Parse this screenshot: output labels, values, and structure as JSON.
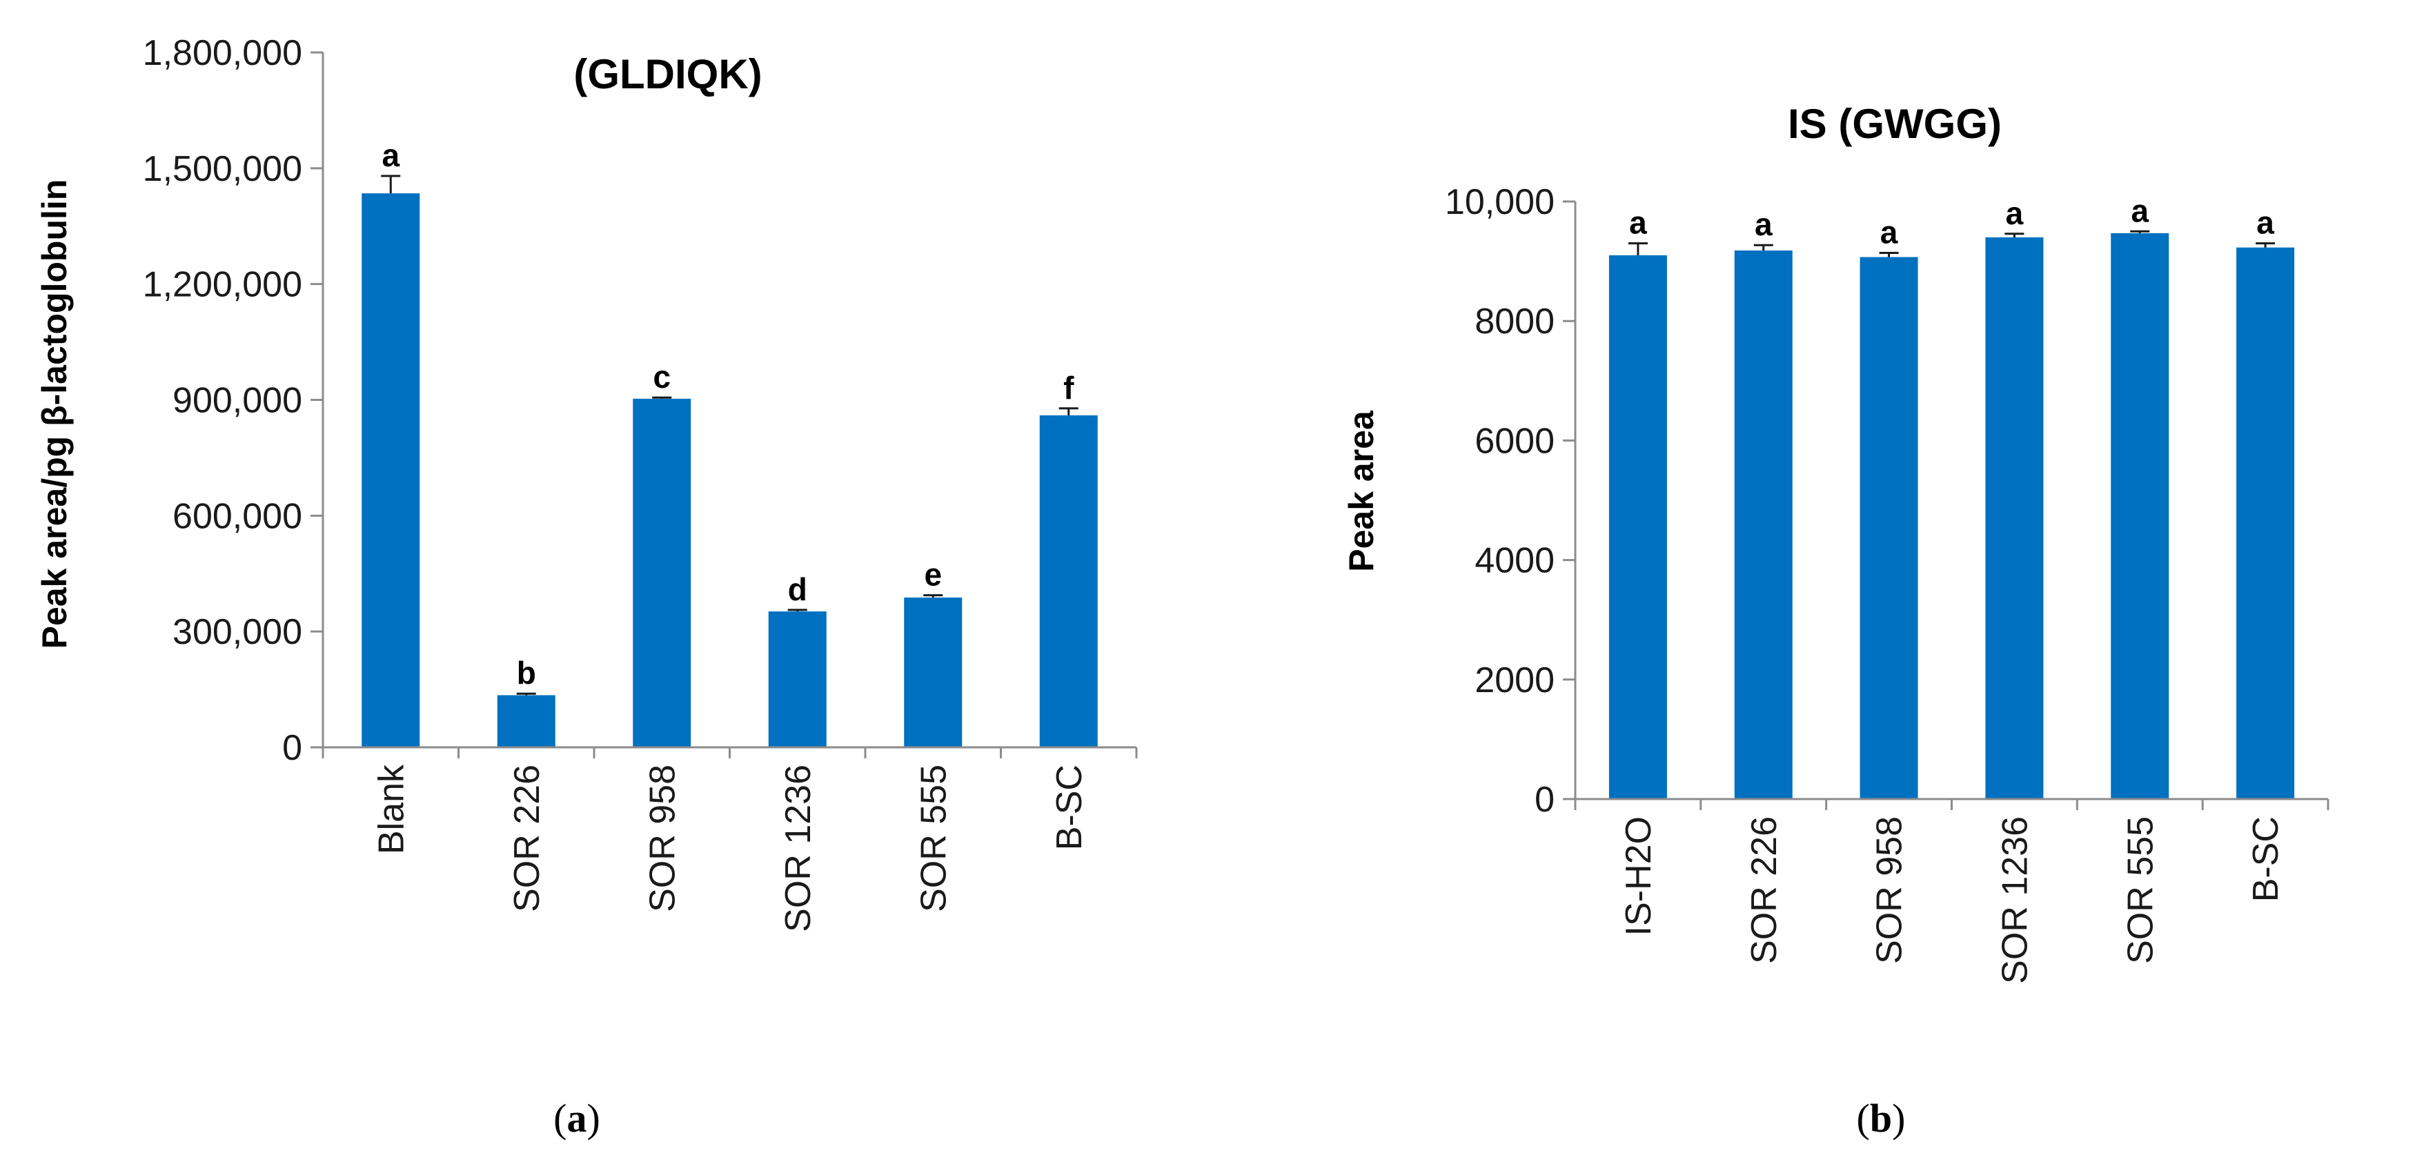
{
  "chart_data": [
    {
      "type": "bar",
      "panel_label": "a",
      "title": "(GLDIQK)",
      "xlabel": "",
      "ylabel": "Peak area/pg β-lactoglobulin",
      "ylim": [
        0,
        1800000
      ],
      "yticks": [
        0,
        300000,
        600000,
        900000,
        1200000,
        1500000,
        1800000
      ],
      "ytick_labels": [
        "0",
        "300,000",
        "600,000",
        "900,000",
        "1,200,000",
        "1,500,000",
        "1,800,000"
      ],
      "categories": [
        "Blank",
        "SOR 226",
        "SOR 958",
        "SOR 1236",
        "SOR 555",
        "B-SC"
      ],
      "values": [
        1435000,
        135000,
        903000,
        352000,
        388000,
        860000
      ],
      "errors": [
        45000,
        4000,
        3000,
        4000,
        6000,
        18000
      ],
      "labels": [
        "a",
        "b",
        "c",
        "d",
        "e",
        "f"
      ],
      "bar_color": "#0070c0",
      "grid": false,
      "legend": "none"
    },
    {
      "type": "bar",
      "panel_label": "b",
      "title": "IS (GWGG)",
      "xlabel": "",
      "ylabel": "Peak area",
      "ylim": [
        0,
        10000
      ],
      "yticks": [
        0,
        2000,
        4000,
        6000,
        8000,
        10000
      ],
      "ytick_labels": [
        "0",
        "2000",
        "4000",
        "6000",
        "8000",
        "10,000"
      ],
      "categories": [
        "IS-H2O",
        "SOR 226",
        "SOR 958",
        "SOR 1236",
        "SOR 555",
        "B-SC"
      ],
      "values": [
        9100,
        9180,
        9070,
        9400,
        9470,
        9230
      ],
      "errors": [
        200,
        90,
        70,
        60,
        30,
        70
      ],
      "labels": [
        "a",
        "a",
        "a",
        "a",
        "a",
        "a"
      ],
      "bar_color": "#0070c0",
      "grid": false,
      "legend": "none"
    }
  ]
}
